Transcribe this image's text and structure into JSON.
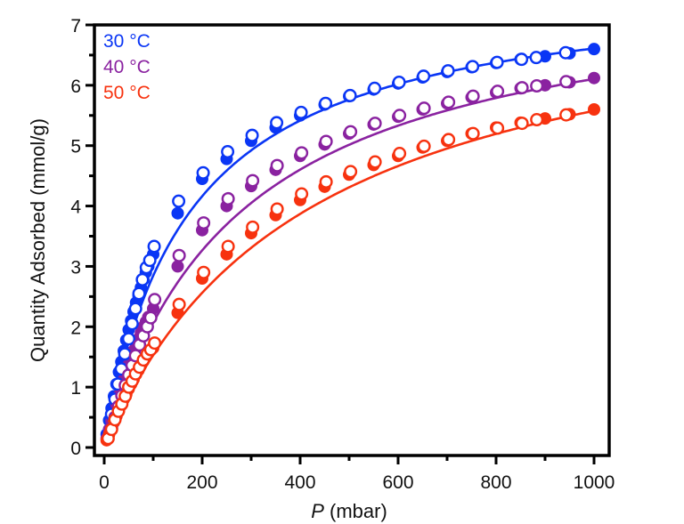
{
  "chart_data": {
    "type": "scatter",
    "title": "",
    "xlabel_italic": "P",
    "xlabel_rest": " (mbar)",
    "xlabel": "P (mbar)",
    "ylabel": "Quantity Adsorbed (mmol/g)",
    "xlim": [
      -20,
      1030
    ],
    "ylim": [
      -0.12,
      7
    ],
    "x_ticks": [
      0,
      200,
      400,
      600,
      800,
      1000
    ],
    "x_minor_ticks": [
      100,
      300,
      500,
      700,
      900
    ],
    "y_ticks": [
      0,
      1,
      2,
      3,
      4,
      5,
      6,
      7
    ],
    "y_minor_ticks": [
      0.5,
      1.5,
      2.5,
      3.5,
      4.5,
      5.5,
      6.5
    ],
    "grid": false,
    "legend_position": "top-left",
    "marker_note": "filled circles = adsorption, open circles = desorption, solid line = fit",
    "series": [
      {
        "name": "30 °C",
        "color": "#0a36f5",
        "adsorption": {
          "x": [
            5,
            10,
            15,
            20,
            25,
            30,
            35,
            40,
            45,
            50,
            55,
            60,
            65,
            70,
            75,
            80,
            85,
            90,
            100,
            150,
            200,
            250,
            300,
            350,
            400,
            450,
            500,
            550,
            600,
            650,
            700,
            750,
            800,
            850,
            900,
            950,
            1000
          ],
          "y": [
            0.22,
            0.45,
            0.65,
            0.85,
            1.05,
            1.25,
            1.42,
            1.6,
            1.78,
            1.95,
            2.1,
            2.25,
            2.4,
            2.52,
            2.65,
            2.78,
            2.9,
            3.0,
            3.2,
            3.88,
            4.45,
            4.78,
            5.08,
            5.3,
            5.5,
            5.68,
            5.82,
            5.93,
            6.03,
            6.13,
            6.22,
            6.3,
            6.37,
            6.43,
            6.48,
            6.53,
            6.6
          ]
        },
        "desorption": {
          "x": [
            15,
            22,
            28,
            35,
            42,
            50,
            57,
            64,
            71,
            78,
            86,
            93,
            102,
            152,
            202,
            252,
            302,
            352,
            402,
            452,
            502,
            552,
            602,
            652,
            702,
            752,
            802,
            852,
            882,
            942
          ],
          "y": [
            0.55,
            0.8,
            1.05,
            1.3,
            1.55,
            1.8,
            2.05,
            2.3,
            2.55,
            2.78,
            2.98,
            3.1,
            3.33,
            4.08,
            4.55,
            4.9,
            5.17,
            5.38,
            5.55,
            5.7,
            5.83,
            5.95,
            6.05,
            6.15,
            6.24,
            6.31,
            6.38,
            6.43,
            6.46,
            6.54
          ]
        },
        "fit": {
          "qmax": 7.75,
          "b": 0.0058,
          "n": 1.0
        }
      },
      {
        "name": "40 °C",
        "color": "#8a22a0",
        "adsorption": {
          "x": [
            5,
            10,
            15,
            20,
            25,
            30,
            35,
            40,
            45,
            50,
            55,
            60,
            65,
            70,
            75,
            80,
            85,
            90,
            100,
            150,
            200,
            250,
            300,
            350,
            400,
            450,
            500,
            550,
            600,
            650,
            700,
            750,
            800,
            850,
            900,
            950,
            1000
          ],
          "y": [
            0.15,
            0.3,
            0.44,
            0.58,
            0.72,
            0.86,
            1.0,
            1.12,
            1.25,
            1.37,
            1.49,
            1.6,
            1.7,
            1.8,
            1.9,
            2.0,
            2.08,
            2.16,
            2.3,
            3.0,
            3.6,
            4.0,
            4.33,
            4.6,
            4.83,
            5.02,
            5.2,
            5.35,
            5.48,
            5.6,
            5.7,
            5.8,
            5.88,
            5.95,
            6.0,
            6.05,
            6.12
          ]
        },
        "desorption": {
          "x": [
            15,
            22,
            29,
            36,
            43,
            50,
            57,
            64,
            72,
            80,
            88,
            95,
            103,
            153,
            203,
            253,
            303,
            353,
            403,
            453,
            503,
            553,
            603,
            653,
            703,
            753,
            803,
            853,
            883,
            943
          ],
          "y": [
            0.32,
            0.5,
            0.68,
            0.86,
            1.03,
            1.2,
            1.36,
            1.52,
            1.7,
            1.85,
            2.0,
            2.15,
            2.45,
            3.18,
            3.72,
            4.12,
            4.42,
            4.67,
            4.88,
            5.07,
            5.23,
            5.37,
            5.5,
            5.62,
            5.72,
            5.82,
            5.9,
            5.96,
            5.99,
            6.06
          ]
        },
        "fit": {
          "qmax": 7.8,
          "b": 0.0036,
          "n": 1.0
        }
      },
      {
        "name": "50 °C",
        "color": "#f7320f",
        "adsorption": {
          "x": [
            5,
            10,
            15,
            20,
            25,
            30,
            35,
            40,
            45,
            50,
            55,
            60,
            65,
            70,
            75,
            80,
            85,
            90,
            100,
            150,
            200,
            250,
            300,
            350,
            400,
            450,
            500,
            550,
            600,
            650,
            700,
            750,
            800,
            850,
            900,
            950,
            1000
          ],
          "y": [
            0.12,
            0.22,
            0.32,
            0.42,
            0.52,
            0.61,
            0.7,
            0.8,
            0.88,
            0.97,
            1.05,
            1.13,
            1.21,
            1.28,
            1.36,
            1.43,
            1.5,
            1.57,
            1.65,
            2.23,
            2.8,
            3.2,
            3.55,
            3.85,
            4.1,
            4.32,
            4.52,
            4.68,
            4.83,
            4.97,
            5.08,
            5.2,
            5.3,
            5.38,
            5.45,
            5.52,
            5.6
          ]
        },
        "desorption": {
          "x": [
            8,
            15,
            22,
            29,
            36,
            43,
            50,
            57,
            64,
            72,
            80,
            88,
            95,
            103,
            153,
            203,
            253,
            303,
            353,
            403,
            453,
            503,
            553,
            603,
            653,
            703,
            753,
            803,
            853,
            883,
            943
          ],
          "y": [
            0.15,
            0.3,
            0.46,
            0.6,
            0.72,
            0.85,
            1.0,
            1.1,
            1.22,
            1.33,
            1.45,
            1.55,
            1.62,
            1.73,
            2.37,
            2.9,
            3.33,
            3.65,
            3.95,
            4.2,
            4.4,
            4.57,
            4.73,
            4.87,
            4.99,
            5.1,
            5.2,
            5.29,
            5.37,
            5.43,
            5.51
          ]
        },
        "fit": {
          "qmax": 7.9,
          "b": 0.0024,
          "n": 1.0
        }
      }
    ]
  }
}
